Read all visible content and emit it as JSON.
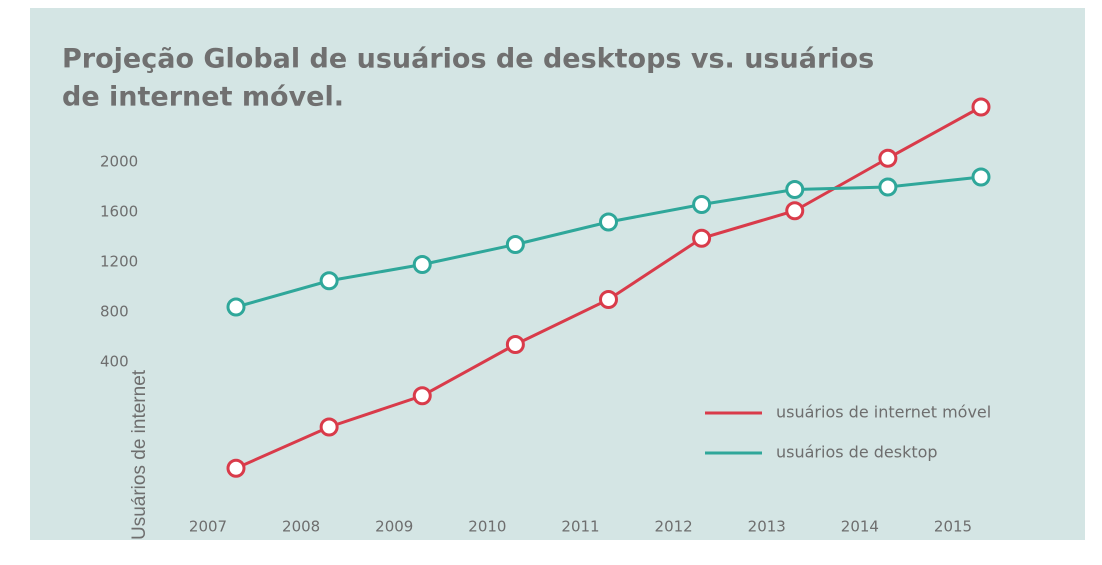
{
  "chart_data": {
    "type": "line",
    "title": [
      "Projeção Global de usuários de desktops vs. usuários",
      "de internet móvel."
    ],
    "y_label": "Usuários de internet",
    "categories": [
      "2007",
      "2008",
      "2009",
      "2010",
      "2011",
      "2012",
      "2013",
      "2014",
      "2015"
    ],
    "series": [
      {
        "name": "usuários de internet móvel",
        "color": "#d93b4a",
        "values": [
          -450,
          -120,
          130,
          540,
          900,
          1390,
          1610,
          2030,
          2440
        ]
      },
      {
        "name": "usuários de desktop",
        "color": "#2fa79a",
        "values": [
          840,
          1050,
          1180,
          1340,
          1520,
          1660,
          1780,
          1800,
          1880
        ]
      }
    ],
    "ylim": [
      -800,
      2800
    ],
    "yticks": [
      400,
      800,
      1200,
      1600,
      2000
    ],
    "grid": false,
    "legend": "right"
  }
}
